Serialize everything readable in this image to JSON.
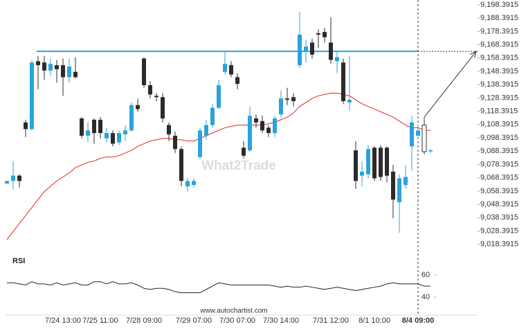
{
  "chart_data": {
    "type": "candlestick",
    "categories": [
      null,
      null,
      null,
      null,
      null,
      null,
      null,
      null,
      null,
      "7/24 13:00",
      null,
      null,
      null,
      null,
      null,
      "7/25 11:00",
      null,
      null,
      null,
      null,
      null,
      null,
      "7/28 09:00",
      null,
      null,
      null,
      null,
      null,
      null,
      null,
      "7/29 07:00",
      null,
      null,
      null,
      null,
      null,
      null,
      "7/30 07:00",
      null,
      null,
      null,
      null,
      null,
      null,
      "7/30 14:00",
      null,
      null,
      null,
      null,
      null,
      null,
      null,
      "7/31 12:00",
      null,
      null,
      null,
      null,
      null,
      null,
      "8/1 10:00",
      null,
      null,
      null,
      null,
      null,
      null,
      "8/4 09:00",
      null,
      null
    ],
    "open": [
      9064,
      9066,
      9070,
      9110,
      9105,
      9156,
      9155,
      9149,
      9153,
      9153,
      9144,
      9148,
      9113,
      9100,
      9112,
      9112,
      9098,
      9102,
      9095,
      9101,
      9104,
      9123,
      9158,
      9138,
      9130,
      9129,
      9108,
      9100,
      9090,
      9062,
      9063,
      9084,
      9100,
      9108,
      9121,
      9148,
      9153,
      9144,
      9091,
      9089,
      9113,
      9111,
      9106,
      9102,
      9116,
      9128,
      9129,
      9153,
      9163,
      9170,
      9177,
      9178,
      9170,
      9156,
      9155,
      9125,
      9089,
      9070,
      9071,
      9091,
      9091,
      9091,
      9073,
      9050,
      9063,
      9092,
      9100,
      9108,
      9089
    ],
    "high": [
      9066,
      9081,
      9071,
      9112,
      9157,
      9160,
      9160,
      9158,
      9157,
      9158,
      9158,
      9159,
      9114,
      9110,
      9113,
      9114,
      9106,
      9104,
      9104,
      9108,
      9125,
      9128,
      9159,
      9141,
      9132,
      9132,
      9110,
      9103,
      9092,
      9068,
      9068,
      9106,
      9112,
      9124,
      9142,
      9163,
      9156,
      9147,
      9096,
      9122,
      9116,
      9115,
      9108,
      9115,
      9134,
      9136,
      9132,
      9193,
      9172,
      9173,
      9180,
      9181,
      9189,
      9163,
      9158,
      9160,
      9096,
      9081,
      9093,
      9092,
      9093,
      9092,
      9078,
      9071,
      9078,
      9115,
      9108,
      9114,
      9090
    ],
    "low": [
      9064,
      9060,
      9061,
      9099,
      9104,
      9135,
      9142,
      9145,
      9140,
      9130,
      9140,
      9143,
      9098,
      9095,
      9094,
      9098,
      9095,
      9092,
      9093,
      9096,
      9103,
      9118,
      9136,
      9128,
      9126,
      9110,
      9096,
      9087,
      9062,
      9058,
      9061,
      9083,
      9097,
      9106,
      9120,
      9146,
      9144,
      9135,
      9083,
      9088,
      9106,
      9102,
      9099,
      9099,
      9114,
      9123,
      9122,
      9151,
      9155,
      9158,
      9166,
      9170,
      9154,
      9147,
      9124,
      9119,
      9060,
      9062,
      9068,
      9066,
      9066,
      9065,
      9038,
      9027,
      9060,
      9074,
      9098,
      9086,
      9087
    ],
    "close": [
      9066,
      9070,
      9066,
      9105,
      9155,
      9153,
      9149,
      9154,
      9150,
      9144,
      9152,
      9144,
      9100,
      9104,
      9102,
      9102,
      9102,
      9094,
      9102,
      9104,
      9123,
      9120,
      9138,
      9131,
      9129,
      9113,
      9101,
      9090,
      9066,
      9066,
      9066,
      9104,
      9108,
      9121,
      9138,
      9154,
      9146,
      9139,
      9085,
      9115,
      9110,
      9104,
      9102,
      9113,
      9128,
      9127,
      9126,
      9176,
      9167,
      9161,
      9176,
      9174,
      9157,
      9159,
      9126,
      9127,
      9066,
      9073,
      9090,
      9068,
      9069,
      9070,
      9052,
      9068,
      9069,
      9110,
      9104,
      9088,
      9089
    ],
    "up_color": "#29a3dd",
    "down_color": "#2b2b2b",
    "ylim": [
      9012,
      9202
    ],
    "yticks": [
      {
        "value": 9018.3915,
        "label": "9,018.3915"
      },
      {
        "value": 9028.3915,
        "label": "9,028.3915"
      },
      {
        "value": 9038.3915,
        "label": "9,038.3915"
      },
      {
        "value": 9048.3915,
        "label": "9,048.3915"
      },
      {
        "value": 9058.3915,
        "label": "9,058.3915"
      },
      {
        "value": 9068.3915,
        "label": "9,068.3915"
      },
      {
        "value": 9078.3915,
        "label": "9,078.3915"
      },
      {
        "value": 9088.3915,
        "label": "9,088.3915"
      },
      {
        "value": 9098.3915,
        "label": "9,098.3915"
      },
      {
        "value": 9108.3915,
        "label": "9,108.3915"
      },
      {
        "value": 9118.3915,
        "label": "9,118.3915"
      },
      {
        "value": 9128.3915,
        "label": "9,128.3915"
      },
      {
        "value": 9138.3915,
        "label": "9,138.3915"
      },
      {
        "value": 9148.3915,
        "label": "9,148.3915"
      },
      {
        "value": 9158.3915,
        "label": "9,158.3915"
      },
      {
        "value": 9168.3915,
        "label": "9,168.3915"
      },
      {
        "value": 9178.3915,
        "label": "9,178.3915"
      },
      {
        "value": 9188.3915,
        "label": "9,188.3915"
      },
      {
        "value": 9198.3915,
        "label": "9,198.3915"
      }
    ],
    "grid": false,
    "resistance": {
      "value": 9163.4,
      "color": "#29a3dd"
    },
    "ma": {
      "color": "#e8231f",
      "values": [
        9022,
        9028,
        9034,
        9040,
        9046,
        9052,
        9058,
        9062,
        9066,
        9069,
        9072,
        9076,
        9078,
        9080,
        9081,
        9083,
        9084,
        9084,
        9085,
        9087,
        9089,
        9092,
        9094,
        9096,
        9097,
        9098,
        9098,
        9097,
        9097,
        9096,
        9096,
        9098,
        9100,
        9102,
        9104,
        9106,
        9107,
        9108,
        9108,
        9108,
        9108,
        9108,
        9109,
        9110,
        9112,
        9114,
        9117,
        9122,
        9125,
        9128,
        9130,
        9131,
        9132,
        9132,
        9131,
        9130,
        9127,
        9124,
        9122,
        9120,
        9118,
        9116,
        9114,
        9111,
        9108,
        9106,
        9106,
        9104,
        9104
      ]
    },
    "rsi": {
      "label": "RSI",
      "color": "#222222",
      "ylim": [
        30,
        77
      ],
      "yticks": [
        40,
        60
      ],
      "values": [
        53,
        53,
        52,
        51,
        54,
        52,
        52,
        51,
        53,
        51,
        52,
        53,
        51,
        51,
        54,
        54,
        52,
        54,
        52,
        52,
        53,
        51,
        48,
        47,
        48,
        48,
        47,
        45,
        44,
        44,
        44,
        44,
        47,
        50,
        53,
        52,
        51,
        51,
        51,
        51,
        51,
        51,
        51,
        50,
        49,
        50,
        49,
        49,
        50,
        49,
        48,
        47,
        48,
        49,
        48,
        47,
        46,
        47,
        48,
        49,
        50,
        52,
        53,
        52,
        52,
        52,
        52,
        50,
        50
      ]
    },
    "watermark": "What2Trade",
    "source": "www.autochartist.com"
  }
}
